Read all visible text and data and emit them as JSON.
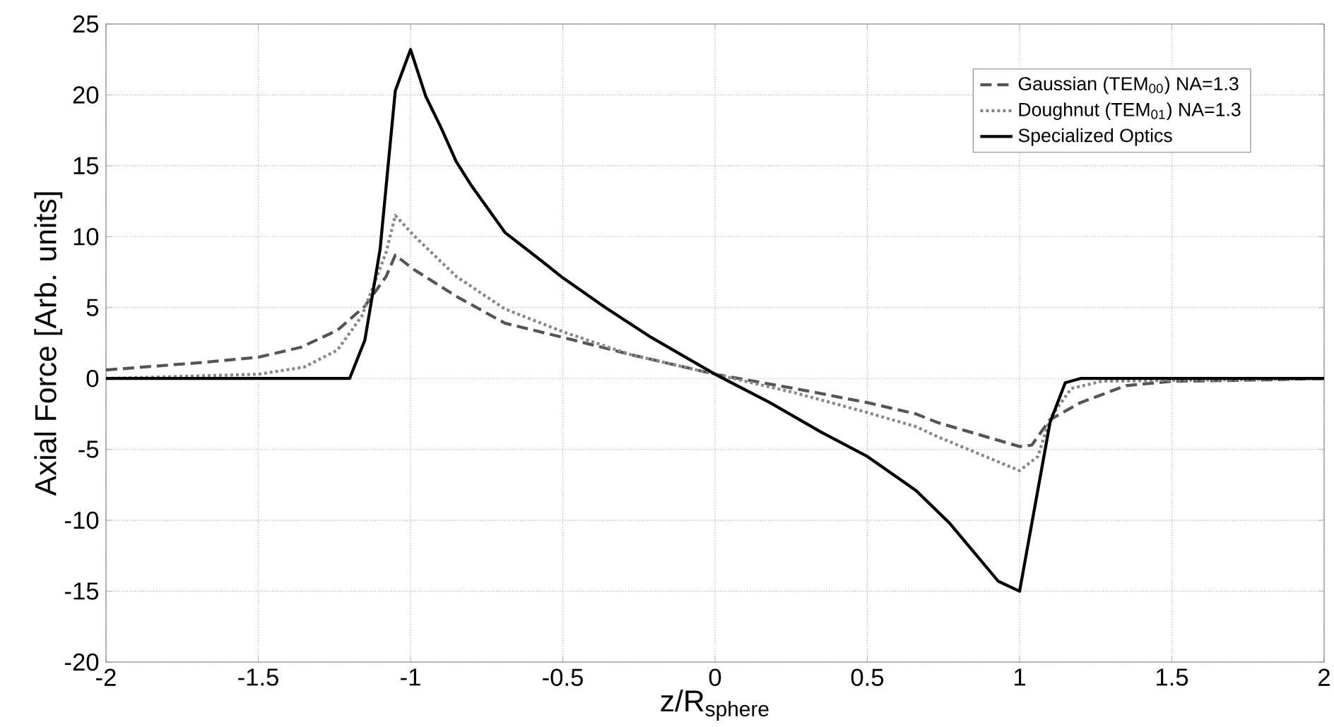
{
  "chart_data": {
    "type": "line",
    "xlabel": "z/R$_{sphere}$",
    "ylabel": "Axial Force [Arb. units]",
    "xlim": [
      -2,
      2
    ],
    "ylim": [
      -20,
      25
    ],
    "xticks": [
      -2,
      -1.5,
      -1,
      -0.5,
      0,
      0.5,
      1,
      1.5,
      2
    ],
    "yticks": [
      -20,
      -15,
      -10,
      -5,
      0,
      5,
      10,
      15,
      20,
      25
    ],
    "grid": true,
    "legend": "top right",
    "marker": "none",
    "series": [
      {
        "name": "Gaussian (TEM$_{00}$) NA=1.3",
        "color": "#555555",
        "line_style": "dashed",
        "x": [
          -2,
          -1.7,
          -1.5,
          -1.36,
          -1.24,
          -1.15,
          -1.08,
          -1.05,
          -0.99,
          -0.85,
          -0.69,
          -0.5,
          -0.28,
          0,
          0.26,
          0.5,
          0.66,
          0.73,
          1,
          1.04,
          1.1,
          1.2,
          1.35,
          1.5,
          1.81,
          2
        ],
        "values": [
          0.6,
          1.1,
          1.5,
          2.2,
          3.4,
          5.1,
          7.2,
          8.7,
          7.7,
          5.8,
          3.9,
          2.9,
          1.7,
          0.3,
          -0.7,
          -1.7,
          -2.5,
          -3.1,
          -4.8,
          -4.7,
          -2.9,
          -1.7,
          -0.5,
          -0.2,
          -0.1,
          0
        ]
      },
      {
        "name": "Doughnut (TEM$_{01}$) NA=1.3",
        "color": "#888888",
        "line_style": "dotted",
        "x": [
          -2,
          -1.5,
          -1.35,
          -1.24,
          -1.16,
          -1.08,
          -1.05,
          -0.99,
          -0.85,
          -0.69,
          -0.5,
          -0.28,
          0,
          0.26,
          0.5,
          0.66,
          0.73,
          1,
          1.06,
          1.1,
          1.17,
          1.27,
          2
        ],
        "values": [
          0,
          0.3,
          0.8,
          2,
          4.4,
          8.9,
          11.5,
          10.1,
          7.2,
          4.9,
          3.3,
          1.7,
          0.3,
          -1,
          -2.4,
          -3.4,
          -4.1,
          -6.5,
          -5.5,
          -2.8,
          -0.7,
          -0.2,
          0
        ]
      },
      {
        "name": "Specialized Optics",
        "color": "#000000",
        "line_style": "solid",
        "x": [
          -2,
          -1.2,
          -1.15,
          -1.1,
          -1.05,
          -1,
          -0.95,
          -0.9,
          -0.85,
          -0.8,
          -0.69,
          -0.57,
          -0.5,
          -0.36,
          -0.21,
          0,
          0.18,
          0.35,
          0.5,
          0.66,
          0.77,
          0.93,
          1,
          1.1,
          1.15,
          1.2,
          2
        ],
        "values": [
          0,
          0,
          2.7,
          9.1,
          20.3,
          23.2,
          19.9,
          17.7,
          15.3,
          13.6,
          10.3,
          8.3,
          7.1,
          5,
          2.9,
          0.3,
          -1.7,
          -3.8,
          -5.5,
          -7.9,
          -10.2,
          -14.3,
          -15,
          -3.1,
          -0.3,
          0,
          0
        ]
      }
    ]
  }
}
